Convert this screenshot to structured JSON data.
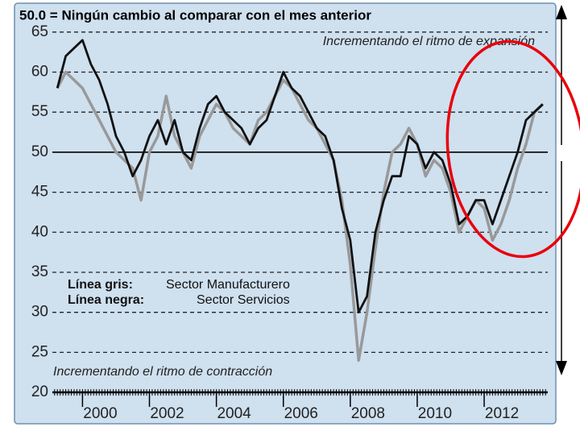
{
  "chart_data": {
    "type": "line",
    "title": "50.0 = Ningún cambio al comparar con el mes anterior",
    "annotations": [
      "Incrementando el ritmo de expansión",
      "Incrementando el ritmo de contracción"
    ],
    "x": [
      1999.25,
      1999.5,
      1999.75,
      2000,
      2000.25,
      2000.5,
      2000.75,
      2001,
      2001.25,
      2001.5,
      2001.75,
      2002,
      2002.25,
      2002.5,
      2002.75,
      2003,
      2003.25,
      2003.5,
      2003.75,
      2004,
      2004.25,
      2004.5,
      2004.75,
      2005,
      2005.25,
      2005.5,
      2005.75,
      2006,
      2006.25,
      2006.5,
      2006.75,
      2007,
      2007.25,
      2007.5,
      2007.75,
      2008,
      2008.25,
      2008.5,
      2008.75,
      2009,
      2009.25,
      2009.5,
      2009.75,
      2010,
      2010.25,
      2010.5,
      2010.75,
      2011,
      2011.25,
      2011.5,
      2011.75,
      2012,
      2012.25,
      2012.5,
      2012.75,
      2013,
      2013.25,
      2013.5,
      2013.75
    ],
    "series": [
      {
        "name": "Sector Manufacturero",
        "legend_label": "Línea gris:",
        "color": "#999999",
        "values": [
          58,
          60,
          59,
          58,
          56,
          54,
          52,
          50,
          49,
          48,
          44,
          50,
          52,
          57,
          52,
          50,
          48,
          52,
          54,
          56,
          55,
          53,
          52,
          51,
          54,
          55,
          57,
          59,
          58,
          56,
          54,
          53,
          51,
          49,
          44,
          36,
          24,
          30,
          38,
          45,
          50,
          51,
          53,
          51,
          47,
          49,
          48,
          45,
          40,
          42,
          44,
          43,
          39,
          41,
          44,
          48,
          51,
          55,
          56
        ]
      },
      {
        "name": "Sector Servicios",
        "legend_label": "Línea negra:",
        "color": "#111111",
        "values": [
          58,
          62,
          63,
          64,
          61,
          59,
          56,
          52,
          50,
          47,
          49,
          52,
          54,
          51,
          54,
          50,
          49,
          53,
          56,
          57,
          55,
          54,
          53,
          51,
          53,
          54,
          57,
          60,
          58,
          57,
          55,
          53,
          52,
          49,
          43,
          39,
          30,
          32,
          40,
          44,
          47,
          47,
          52,
          51,
          48,
          50,
          49,
          46,
          41,
          42,
          44,
          44,
          41,
          44,
          47,
          50,
          54,
          55,
          56
        ]
      }
    ],
    "xlim": [
      1999.1,
      2013.9
    ],
    "xticks": [
      2000,
      2002,
      2004,
      2006,
      2008,
      2010,
      2012
    ],
    "ylim": [
      19,
      68
    ],
    "yticks": [
      20,
      25,
      30,
      35,
      40,
      45,
      50,
      55,
      60,
      65
    ],
    "reference_line": 50,
    "grid": true
  }
}
